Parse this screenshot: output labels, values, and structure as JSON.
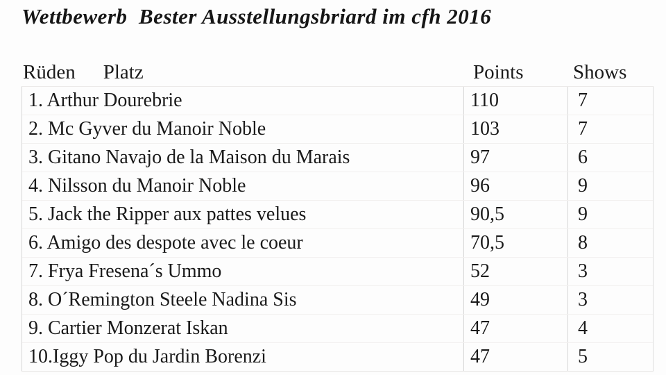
{
  "page": {
    "title": "Wettbewerb  Bester Ausstellungsbriard im cfh 2016"
  },
  "table": {
    "header": {
      "group_label": "Rüden",
      "place_label": "Platz",
      "points_label": "Points",
      "shows_label": "Shows"
    },
    "rows": [
      {
        "name": "1. Arthur Dourebrie",
        "points": "110",
        "shows": "7"
      },
      {
        "name": "2. Mc Gyver du Manoir Noble",
        "points": "103",
        "shows": "7"
      },
      {
        "name": "3. Gitano Navajo de la Maison du Marais",
        "points": "97",
        "shows": "6"
      },
      {
        "name": "4. Nilsson du Manoir Noble",
        "points": "96",
        "shows": "9"
      },
      {
        "name": "5. Jack the Ripper aux pattes velues",
        "points": "90,5",
        "shows": "9"
      },
      {
        "name": "6. Amigo des despote avec le coeur",
        "points": "70,5",
        "shows": "8"
      },
      {
        "name": "7. Frya Fresena´s Ummo",
        "points": "52",
        "shows": "3"
      },
      {
        "name": "8. O´Remington Steele Nadina Sis",
        "points": "49",
        "shows": "3"
      },
      {
        "name": "9. Cartier Monzerat Iskan",
        "points": "47",
        "shows": "4"
      },
      {
        "name": "10.Iggy Pop du Jardin Borenzi",
        "points": "47",
        "shows": "5"
      }
    ]
  },
  "chart_data": {
    "type": "table",
    "title": "Wettbewerb  Bester Ausstellungsbriard im cfh 2016",
    "columns": [
      "Rüden Platz",
      "Points",
      "Shows"
    ],
    "rows": [
      [
        "1. Arthur Dourebrie",
        110,
        7
      ],
      [
        "2. Mc Gyver du Manoir Noble",
        103,
        7
      ],
      [
        "3. Gitano Navajo de la Maison du Marais",
        97,
        6
      ],
      [
        "4. Nilsson du Manoir Noble",
        96,
        9
      ],
      [
        "5. Jack the Ripper aux pattes velues",
        90.5,
        9
      ],
      [
        "6. Amigo des despote avec le coeur",
        70.5,
        8
      ],
      [
        "7. Frya Fresena´s Ummo",
        52,
        3
      ],
      [
        "8. O´Remington Steele Nadina Sis",
        49,
        3
      ],
      [
        "9. Cartier Monzerat Iskan",
        47,
        4
      ],
      [
        "10.Iggy Pop du Jardin Borenzi",
        47,
        5
      ]
    ]
  },
  "colors": {
    "background": "#fdfdfd",
    "text": "#1a1a1a",
    "grid_line": "#d6d6d6"
  }
}
